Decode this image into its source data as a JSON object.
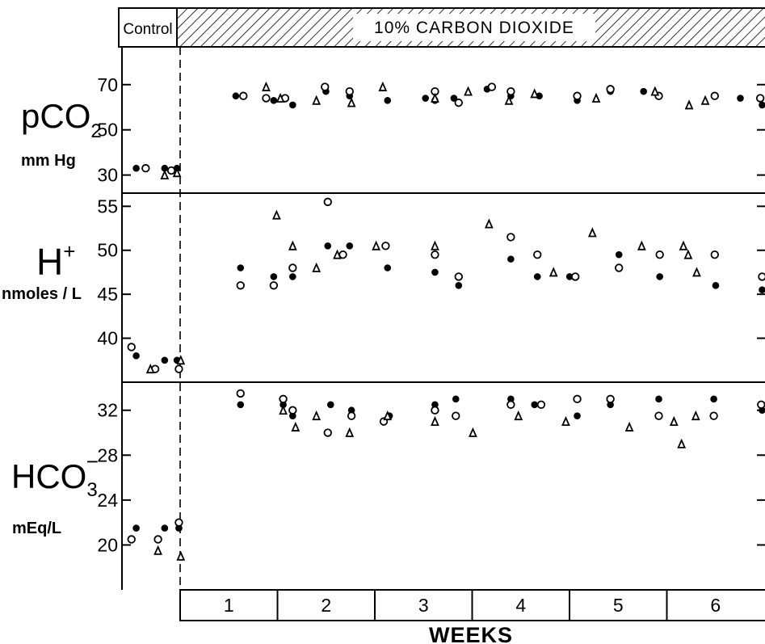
{
  "header": {
    "control_label": "Control",
    "treatment_label": "10% CARBON DIOXIDE"
  },
  "colors": {
    "ink": "#000000",
    "background": "#ffffff"
  },
  "chart_data": [
    {
      "type": "scatter",
      "panel": "pco2",
      "ylabel_main": "pCO",
      "ylabel_sub": "2",
      "units": "mm Hg",
      "yticks": [
        30,
        50,
        70
      ],
      "ylim": [
        22,
        86
      ],
      "series": [
        {
          "name": "filled-circle",
          "marker": "filled-circle",
          "points": [
            [
              -0.55,
              33
            ],
            [
              -0.25,
              33
            ],
            [
              -0.12,
              33
            ],
            [
              0.5,
              65
            ],
            [
              0.9,
              63
            ],
            [
              1.1,
              61
            ],
            [
              1.45,
              67
            ],
            [
              1.7,
              65
            ],
            [
              2.1,
              63
            ],
            [
              2.5,
              64
            ],
            [
              2.6,
              63
            ],
            [
              2.8,
              64
            ],
            [
              3.15,
              68
            ],
            [
              3.4,
              65
            ],
            [
              3.7,
              65
            ],
            [
              4.1,
              63
            ],
            [
              4.45,
              67
            ],
            [
              4.8,
              67
            ],
            [
              5.82,
              64
            ],
            [
              6.05,
              61
            ]
          ]
        },
        {
          "name": "open-circle",
          "marker": "open-circle",
          "points": [
            [
              -0.45,
              33
            ],
            [
              -0.18,
              32
            ],
            [
              0.58,
              65
            ],
            [
              0.82,
              64
            ],
            [
              1.02,
              64
            ],
            [
              1.44,
              69
            ],
            [
              1.7,
              67
            ],
            [
              2.6,
              67
            ],
            [
              2.85,
              62
            ],
            [
              3.2,
              69
            ],
            [
              3.4,
              67
            ],
            [
              4.1,
              65
            ],
            [
              4.45,
              68
            ],
            [
              4.96,
              65
            ],
            [
              5.55,
              65
            ],
            [
              6.03,
              64
            ]
          ]
        },
        {
          "name": "triangle",
          "marker": "triangle",
          "points": [
            [
              -0.25,
              30
            ],
            [
              -0.12,
              31
            ],
            [
              0.82,
              69
            ],
            [
              0.97,
              64
            ],
            [
              1.35,
              63
            ],
            [
              1.72,
              62
            ],
            [
              2.05,
              69
            ],
            [
              2.6,
              64
            ],
            [
              2.95,
              67
            ],
            [
              3.38,
              63
            ],
            [
              3.65,
              66
            ],
            [
              4.3,
              64
            ],
            [
              4.92,
              67
            ],
            [
              5.28,
              61
            ],
            [
              5.45,
              63
            ]
          ]
        }
      ]
    },
    {
      "type": "scatter",
      "panel": "h-ion",
      "ylabel_main": "H",
      "ylabel_sup": "+",
      "units": "nmoles / L",
      "yticks": [
        40,
        45,
        50,
        55
      ],
      "ylim": [
        35,
        56.5
      ],
      "series": [
        {
          "name": "filled-circle",
          "marker": "filled-circle",
          "points": [
            [
              -0.55,
              38
            ],
            [
              -0.25,
              37.5
            ],
            [
              -0.12,
              37.5
            ],
            [
              0.55,
              48
            ],
            [
              0.9,
              47
            ],
            [
              1.1,
              47
            ],
            [
              1.47,
              50.5
            ],
            [
              1.7,
              50.5
            ],
            [
              2.1,
              48
            ],
            [
              2.6,
              47.5
            ],
            [
              2.85,
              46
            ],
            [
              3.4,
              49
            ],
            [
              3.68,
              47
            ],
            [
              4.02,
              47
            ],
            [
              4.54,
              49.5
            ],
            [
              4.97,
              47
            ],
            [
              5.56,
              46
            ],
            [
              6.05,
              45.5
            ]
          ]
        },
        {
          "name": "open-circle",
          "marker": "open-circle",
          "points": [
            [
              -0.6,
              39
            ],
            [
              -0.35,
              36.5
            ],
            [
              -0.1,
              36.5
            ],
            [
              0.55,
              46
            ],
            [
              0.9,
              46
            ],
            [
              1.1,
              48
            ],
            [
              1.47,
              55.5
            ],
            [
              1.63,
              49.5
            ],
            [
              2.08,
              50.5
            ],
            [
              2.6,
              49.5
            ],
            [
              2.85,
              47
            ],
            [
              3.4,
              51.5
            ],
            [
              3.68,
              49.5
            ],
            [
              4.08,
              47
            ],
            [
              4.54,
              48
            ],
            [
              4.97,
              49.5
            ],
            [
              5.55,
              49.5
            ],
            [
              6.05,
              47
            ]
          ]
        },
        {
          "name": "triangle",
          "marker": "triangle",
          "points": [
            [
              -0.4,
              36.5
            ],
            [
              -0.08,
              37.5
            ],
            [
              0.93,
              54
            ],
            [
              1.1,
              50.5
            ],
            [
              1.35,
              48
            ],
            [
              1.57,
              49.5
            ],
            [
              1.98,
              50.5
            ],
            [
              2.6,
              50.5
            ],
            [
              3.17,
              53
            ],
            [
              3.85,
              47.5
            ],
            [
              4.26,
              52
            ],
            [
              4.78,
              50.5
            ],
            [
              5.22,
              50.5
            ],
            [
              5.27,
              49.5
            ],
            [
              5.36,
              47.5
            ]
          ]
        }
      ]
    },
    {
      "type": "scatter",
      "panel": "bicarbonate",
      "ylabel_main": "HCO",
      "ylabel_sub": "3",
      "ylabel_sup": "−",
      "units": "mEq/L",
      "yticks": [
        20,
        24,
        28,
        32
      ],
      "ylim": [
        16,
        34.5
      ],
      "series": [
        {
          "name": "filled-circle",
          "marker": "filled-circle",
          "points": [
            [
              -0.55,
              21.5
            ],
            [
              -0.25,
              21.5
            ],
            [
              -0.1,
              21.5
            ],
            [
              0.55,
              32.5
            ],
            [
              1.0,
              32.5
            ],
            [
              1.1,
              31.5
            ],
            [
              1.5,
              32.5
            ],
            [
              1.72,
              32
            ],
            [
              2.12,
              31.5
            ],
            [
              2.6,
              32.5
            ],
            [
              2.82,
              33
            ],
            [
              3.4,
              33
            ],
            [
              3.65,
              32.5
            ],
            [
              4.1,
              31.5
            ],
            [
              4.45,
              32.5
            ],
            [
              4.96,
              33
            ],
            [
              5.54,
              33
            ],
            [
              6.05,
              32
            ]
          ]
        },
        {
          "name": "open-circle",
          "marker": "open-circle",
          "points": [
            [
              -0.6,
              20.5
            ],
            [
              -0.32,
              20.5
            ],
            [
              -0.1,
              22
            ],
            [
              0.55,
              33.5
            ],
            [
              1.0,
              33
            ],
            [
              1.1,
              32
            ],
            [
              1.47,
              30
            ],
            [
              1.72,
              31.5
            ],
            [
              2.06,
              31
            ],
            [
              2.6,
              32
            ],
            [
              2.82,
              31.5
            ],
            [
              3.4,
              32.5
            ],
            [
              3.72,
              32.5
            ],
            [
              4.1,
              33
            ],
            [
              4.45,
              33
            ],
            [
              4.96,
              31.5
            ],
            [
              5.54,
              31.5
            ],
            [
              6.04,
              32.5
            ]
          ]
        },
        {
          "name": "triangle",
          "marker": "triangle",
          "points": [
            [
              -0.32,
              19.5
            ],
            [
              -0.08,
              19
            ],
            [
              1.0,
              32
            ],
            [
              1.13,
              30.5
            ],
            [
              1.35,
              31.5
            ],
            [
              1.7,
              30
            ],
            [
              2.1,
              31.5
            ],
            [
              2.6,
              31
            ],
            [
              3.0,
              30
            ],
            [
              3.48,
              31.5
            ],
            [
              3.98,
              31
            ],
            [
              4.65,
              30.5
            ],
            [
              5.12,
              31
            ],
            [
              5.2,
              29
            ],
            [
              5.35,
              31.5
            ]
          ]
        }
      ]
    }
  ],
  "x_axis": {
    "xlim": [
      -0.7,
      6.08
    ],
    "week_labels": [
      "1",
      "2",
      "3",
      "4",
      "5",
      "6"
    ],
    "xlabel": "WEEKS"
  }
}
